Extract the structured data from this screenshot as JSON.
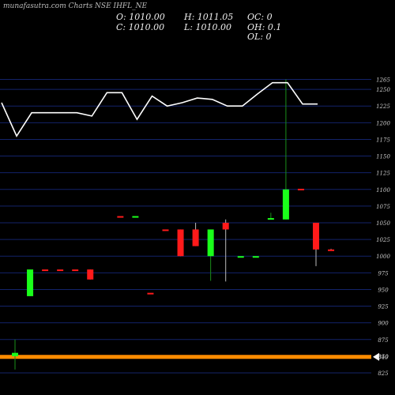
{
  "watermark": "munafasutra.com Charts NSE IHFL_NE",
  "ohlc": {
    "o": "O: 1010.00",
    "h": "H: 1011.05",
    "oc": "OC: 0",
    "c": "C: 1010.00",
    "l": "L: 1010.00",
    "oh": "OH: 0.1",
    "ol": "OL: 0"
  },
  "colors": {
    "background": "#000000",
    "grid": "#13236a",
    "up": "#1aff1a",
    "down": "#ff1a1a",
    "flat": "#1a8f1a",
    "line": "#ffffff",
    "level": "#ff8c00",
    "tick_text": "#cccccc"
  },
  "chart_data": {
    "type": "candlestick",
    "y_ticks": [
      825,
      850,
      875,
      900,
      925,
      950,
      975,
      1000,
      1025,
      1050,
      1075,
      1100,
      1125,
      1150,
      1175,
      1200,
      1225,
      1250,
      1265
    ],
    "ylim": [
      825,
      1275
    ],
    "horizontal_line": 849,
    "arrow_label": "849",
    "candles": [
      {
        "o": 850,
        "h": 875,
        "l": 830,
        "c": 855
      },
      {
        "o": 940,
        "h": 980,
        "l": 940,
        "c": 980
      },
      {
        "o": 980,
        "h": 980,
        "l": 980,
        "c": 980
      },
      {
        "o": 980,
        "h": 980,
        "l": 980,
        "c": 980
      },
      {
        "o": 980,
        "h": 980,
        "l": 980,
        "c": 980
      },
      {
        "o": 980,
        "h": 980,
        "l": 965,
        "c": 965
      },
      {
        "o": null,
        "h": null,
        "l": null,
        "c": null
      },
      {
        "o": 1060,
        "h": 1060,
        "l": 1060,
        "c": 1060
      },
      {
        "o": 1060,
        "h": 1060,
        "l": 1060,
        "c": 1060
      },
      {
        "o": 945,
        "h": 945,
        "l": 945,
        "c": 945
      },
      {
        "o": 1040,
        "h": 1040,
        "l": 1040,
        "c": 1040
      },
      {
        "o": 1040,
        "h": 1040,
        "l": 1000,
        "c": 1000
      },
      {
        "o": 1040,
        "h": 1050,
        "l": 1015,
        "c": 1015
      },
      {
        "o": 1000,
        "h": 1040,
        "l": 963,
        "c": 1040
      },
      {
        "o": 1050,
        "h": 1055,
        "l": 962,
        "c": 1040
      },
      {
        "o": 1000,
        "h": 1000,
        "l": 1000,
        "c": 1000
      },
      {
        "o": 1000,
        "h": 1000,
        "l": 1000,
        "c": 1000
      },
      {
        "o": 1055,
        "h": 1065,
        "l": 1055,
        "c": 1057
      },
      {
        "o": 1055,
        "h": 1265,
        "l": 1055,
        "c": 1100
      },
      {
        "o": 1101,
        "h": 1101,
        "l": 1101,
        "c": 1101
      },
      {
        "o": 1050,
        "h": 1050,
        "l": 985,
        "c": 1010
      },
      {
        "o": 1010,
        "h": 1011.05,
        "l": 1010,
        "c": 1010
      }
    ],
    "line_values": [
      1230,
      1180,
      1215,
      1215,
      1215,
      1215,
      1210,
      1245,
      1245,
      1205,
      1240,
      1225,
      1230,
      1237,
      1235,
      1225,
      1225,
      1243,
      1260,
      1260,
      1228,
      1228
    ]
  }
}
